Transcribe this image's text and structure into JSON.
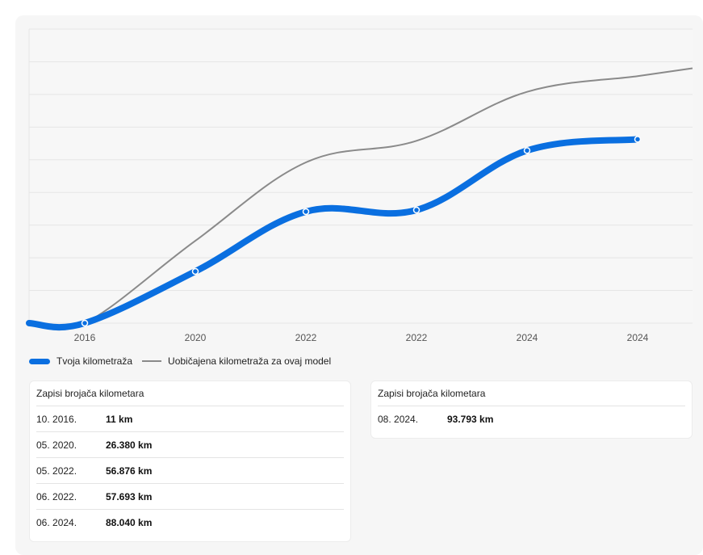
{
  "chart_data": {
    "type": "line",
    "x_tick_labels": [
      "2016",
      "2020",
      "2022",
      "2022",
      "2024",
      "2024"
    ],
    "series": [
      {
        "name": "Tvoja kilometraža",
        "color": "#0a6fe0",
        "values": [
          11,
          26380,
          56876,
          57693,
          88040,
          93793
        ]
      },
      {
        "name": "Uobičajena kilometraža za ovaj model",
        "color": "#8a8a8a",
        "values": [
          0,
          42000,
          82000,
          93000,
          118000,
          126000
        ]
      }
    ],
    "ylim": [
      0,
      150000
    ],
    "grid": true,
    "legend_position": "bottom-left"
  },
  "legend": {
    "items": [
      {
        "label": "Tvoja kilometraža",
        "color": "#0a6fe0",
        "style": "thick"
      },
      {
        "label": "Uobičajena kilometraža za ovaj model",
        "color": "#8a8a8a",
        "style": "thin"
      }
    ]
  },
  "tables": [
    {
      "title": "Zapisi brojača kilometara",
      "rows": [
        {
          "date": "10. 2016.",
          "value": "11 km"
        },
        {
          "date": "05. 2020.",
          "value": "26.380 km"
        },
        {
          "date": "05. 2022.",
          "value": "56.876 km"
        },
        {
          "date": "06. 2022.",
          "value": "57.693 km"
        },
        {
          "date": "06. 2024.",
          "value": "88.040 km"
        }
      ]
    },
    {
      "title": "Zapisi brojača kilometara",
      "rows": [
        {
          "date": "08. 2024.",
          "value": "93.793 km"
        }
      ]
    }
  ]
}
